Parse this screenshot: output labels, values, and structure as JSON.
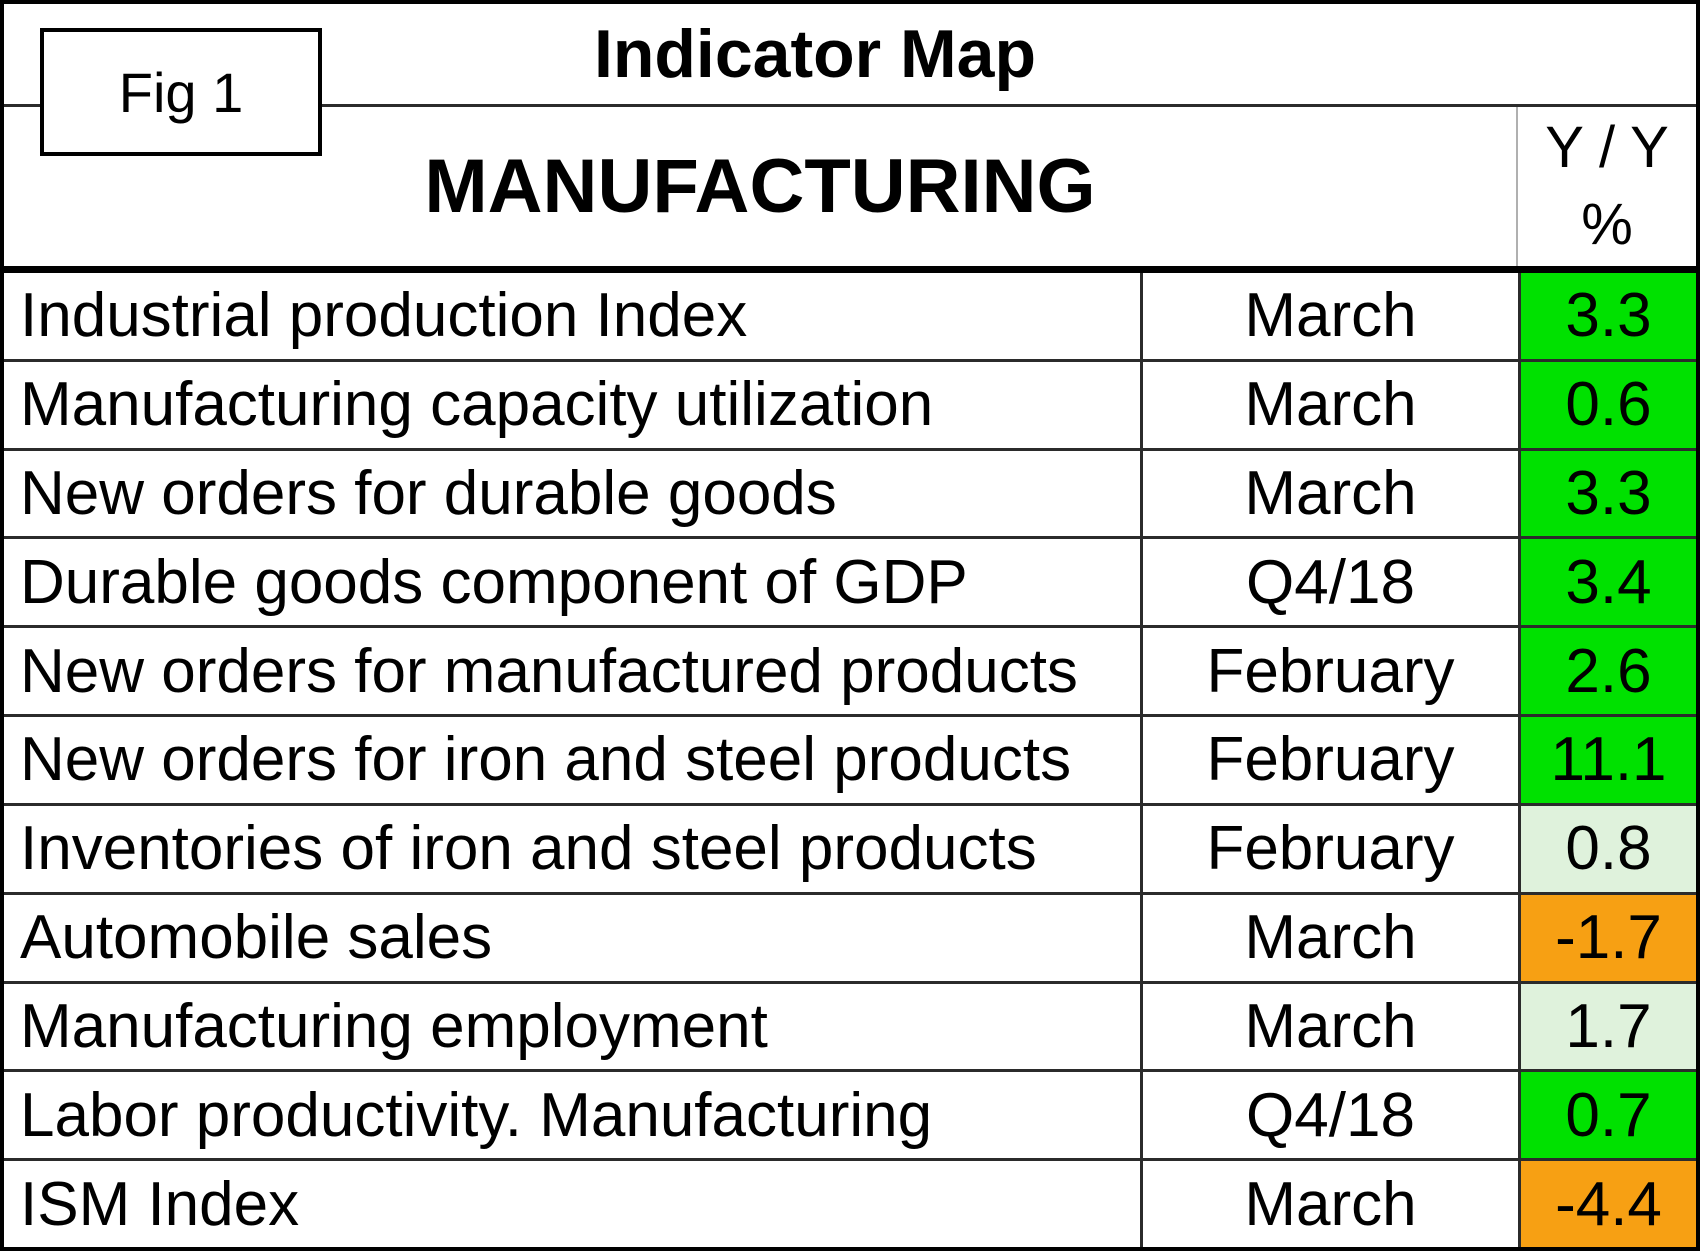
{
  "figure": {
    "label": "Fig 1",
    "title": "Indicator Map"
  },
  "section": {
    "title": "MANUFACTURING"
  },
  "value_header": {
    "line1": "Y / Y",
    "line2": "%"
  },
  "colors": {
    "strong_positive": "#00e100",
    "weak_positive": "#dff2dc",
    "negative": "#f7a013",
    "grid": "#2b2b2b"
  },
  "chart_data": {
    "type": "table",
    "title": "Indicator Map",
    "section": "MANUFACTURING",
    "columns": [
      "Indicator",
      "Period",
      "Y / Y %"
    ],
    "rows": [
      {
        "indicator": "Industrial production Index",
        "period": "March",
        "value": "3.3",
        "value_num": 3.3,
        "color": "#00e100",
        "color_category": "bright_green"
      },
      {
        "indicator": "Manufacturing capacity utilization",
        "period": "March",
        "value": "0.6",
        "value_num": 0.6,
        "color": "#00e100",
        "color_category": "bright_green"
      },
      {
        "indicator": "New orders for durable goods",
        "period": "March",
        "value": "3.3",
        "value_num": 3.3,
        "color": "#00e100",
        "color_category": "bright_green"
      },
      {
        "indicator": "Durable goods component of GDP",
        "period": "Q4/18",
        "value": "3.4",
        "value_num": 3.4,
        "color": "#00e100",
        "color_category": "bright_green"
      },
      {
        "indicator": "New orders for manufactured products",
        "period": "February",
        "value": "2.6",
        "value_num": 2.6,
        "color": "#00e100",
        "color_category": "bright_green"
      },
      {
        "indicator": "New orders for iron and steel products",
        "period": "February",
        "value": "11.1",
        "value_num": 11.1,
        "color": "#00e100",
        "color_category": "bright_green"
      },
      {
        "indicator": "Inventories of iron and steel products",
        "period": "February",
        "value": "0.8",
        "value_num": 0.8,
        "color": "#dff2dc",
        "color_category": "light_green"
      },
      {
        "indicator": "Automobile sales",
        "period": "March",
        "value": "-1.7",
        "value_num": -1.7,
        "color": "#f7a013",
        "color_category": "orange"
      },
      {
        "indicator": "Manufacturing employment",
        "period": "March",
        "value": "1.7",
        "value_num": 1.7,
        "color": "#dff2dc",
        "color_category": "light_green"
      },
      {
        "indicator": "Labor productivity. Manufacturing",
        "period": "Q4/18",
        "value": "0.7",
        "value_num": 0.7,
        "color": "#00e100",
        "color_category": "bright_green"
      },
      {
        "indicator": "ISM Index",
        "period": "March",
        "value": "-4.4",
        "value_num": -4.4,
        "color": "#f7a013",
        "color_category": "orange"
      }
    ]
  }
}
